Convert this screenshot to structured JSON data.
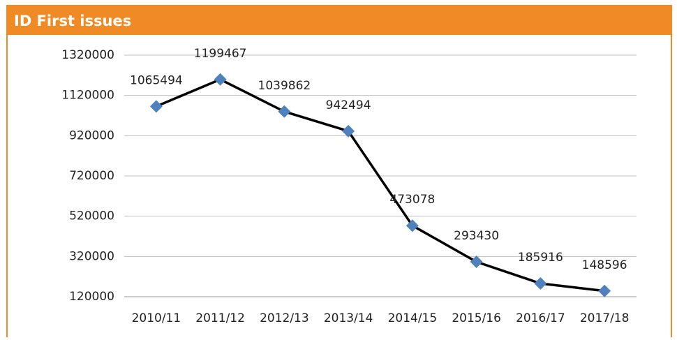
{
  "chart_data": {
    "type": "line",
    "title": "ID First issues",
    "categories": [
      "2010/11",
      "2011/12",
      "2012/13",
      "2013/14",
      "2014/15",
      "2015/16",
      "2016/17",
      "2017/18"
    ],
    "series": [
      {
        "name": "ID First issues",
        "color": "#000000",
        "marker_color": "#4f81bd",
        "values": [
          1065494,
          1199467,
          1039862,
          942494,
          473078,
          293430,
          185916,
          148596
        ]
      }
    ],
    "ylim": [
      120000,
      1320000
    ],
    "yticks": [
      120000,
      320000,
      520000,
      720000,
      920000,
      1120000,
      1320000
    ],
    "grid": true
  }
}
